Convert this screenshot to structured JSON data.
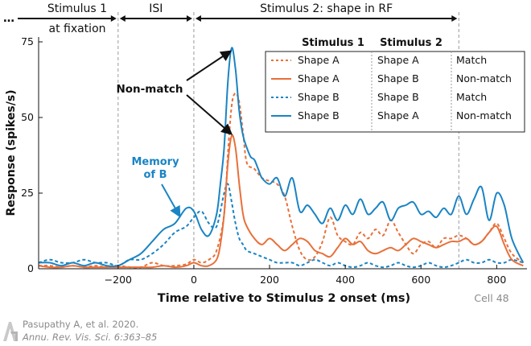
{
  "chart_data": {
    "type": "line",
    "title": "",
    "xlabel": "Time relative to Stimulus 2 onset (ms)",
    "ylabel": "Response (spikes/s)",
    "xlim": [
      -410,
      880
    ],
    "ylim": [
      0,
      75
    ],
    "x_ticks": [
      -200,
      0,
      200,
      400,
      600,
      800
    ],
    "x_tick_labels": [
      "−200",
      "0",
      "200",
      "400",
      "600",
      "800"
    ],
    "y_ticks": [
      0,
      25,
      50,
      75
    ],
    "y_tick_labels": [
      "0",
      "25",
      "50",
      "75"
    ],
    "cell_label": "Cell 48",
    "epochs": [
      {
        "label": "Stimulus 1",
        "sublabel": "at fixation",
        "start": -410,
        "end": -200,
        "dots": "…"
      },
      {
        "label": "ISI",
        "start": -200,
        "end": 0
      },
      {
        "label": "Stimulus 2: shape in RF",
        "start": 0,
        "end": 700
      }
    ],
    "epoch_boundaries": [
      -200,
      0,
      700
    ],
    "legend": {
      "header_stim1": "Stimulus 1",
      "header_stim2": "Stimulus 2",
      "rows": [
        {
          "stim1": "Shape A",
          "stim2": "Shape A",
          "outcome": "Match"
        },
        {
          "stim1": "Shape A",
          "stim2": "Shape B",
          "outcome": "Non-match"
        },
        {
          "stim1": "Shape B",
          "stim2": "Shape B",
          "outcome": "Match"
        },
        {
          "stim1": "Shape B",
          "stim2": "Shape A",
          "outcome": "Non-match"
        }
      ]
    },
    "annotations": {
      "nonmatch": "Non-match",
      "memory_line1": "Memory",
      "memory_line2": "of B"
    },
    "series": [
      {
        "name": "Shape A → Shape A (Match)",
        "color": "#e8703a",
        "dash": true,
        "x": [
          -410,
          -380,
          -350,
          -320,
          -290,
          -260,
          -230,
          -200,
          -170,
          -140,
          -110,
          -80,
          -50,
          -20,
          0,
          20,
          40,
          60,
          80,
          90,
          100,
          110,
          120,
          130,
          140,
          160,
          180,
          200,
          220,
          240,
          260,
          280,
          300,
          320,
          340,
          360,
          380,
          400,
          420,
          440,
          460,
          480,
          500,
          520,
          540,
          560,
          580,
          600,
          620,
          640,
          660,
          680,
          700,
          720,
          740,
          760,
          780,
          800,
          820,
          840,
          870
        ],
        "y": [
          1,
          1,
          0.5,
          1,
          0.5,
          1,
          0.5,
          1,
          0.5,
          0.5,
          2,
          1,
          1,
          1.5,
          3,
          2,
          3,
          6,
          18,
          38,
          54,
          58,
          55,
          45,
          35,
          33,
          30,
          29,
          28,
          24,
          14,
          6,
          3,
          4,
          9,
          17,
          11,
          9,
          8,
          12,
          10,
          13,
          11,
          16,
          12,
          8,
          5,
          8,
          9,
          7,
          10,
          10,
          11,
          10,
          8,
          9,
          12,
          15,
          10,
          5,
          2
        ]
      },
      {
        "name": "Shape A → Shape B (Non-match)",
        "color": "#e8703a",
        "dash": false,
        "x": [
          -410,
          -380,
          -350,
          -320,
          -290,
          -260,
          -230,
          -200,
          -170,
          -140,
          -110,
          -80,
          -50,
          -20,
          0,
          20,
          40,
          60,
          70,
          80,
          90,
          100,
          110,
          120,
          130,
          140,
          160,
          180,
          200,
          220,
          240,
          260,
          280,
          300,
          320,
          340,
          360,
          380,
          400,
          420,
          440,
          460,
          480,
          500,
          520,
          540,
          560,
          580,
          600,
          620,
          640,
          660,
          680,
          700,
          720,
          740,
          760,
          780,
          800,
          820,
          840,
          870
        ],
        "y": [
          1,
          0.5,
          0.5,
          1,
          0.5,
          0.5,
          0.5,
          0.5,
          0.5,
          0.5,
          0.5,
          1,
          0.5,
          1,
          2,
          1,
          1,
          3,
          8,
          18,
          35,
          44,
          40,
          28,
          18,
          14,
          10,
          8,
          10,
          8,
          6,
          8,
          10,
          9,
          6,
          5,
          4,
          7,
          10,
          8,
          9,
          6,
          5,
          6,
          7,
          6,
          8,
          10,
          9,
          8,
          7,
          8,
          9,
          9,
          10,
          8,
          9,
          12,
          14,
          8,
          3,
          1
        ]
      },
      {
        "name": "Shape B → Shape B (Match)",
        "color": "#1a84c4",
        "dash": true,
        "x": [
          -410,
          -380,
          -350,
          -320,
          -290,
          -260,
          -230,
          -200,
          -170,
          -140,
          -110,
          -80,
          -50,
          -20,
          0,
          20,
          40,
          60,
          80,
          90,
          100,
          110,
          120,
          130,
          140,
          160,
          180,
          200,
          220,
          240,
          260,
          280,
          300,
          320,
          340,
          360,
          380,
          400,
          420,
          440,
          460,
          480,
          500,
          520,
          540,
          560,
          580,
          600,
          620,
          640,
          660,
          680,
          700,
          720,
          740,
          760,
          780,
          800,
          820,
          840,
          870
        ],
        "y": [
          2,
          3,
          2,
          2,
          3,
          2,
          2,
          1,
          3,
          3,
          5,
          8,
          12,
          14,
          17,
          19,
          15,
          14,
          25,
          28,
          22,
          15,
          10,
          8,
          6,
          5,
          4,
          3,
          2,
          2,
          2,
          1,
          2,
          3,
          2,
          1,
          2,
          1,
          0.5,
          1,
          2,
          1,
          0.5,
          1,
          2,
          1,
          0.5,
          1,
          2,
          1,
          0.5,
          1,
          2,
          3,
          2,
          2,
          3,
          2,
          2,
          3,
          2
        ]
      },
      {
        "name": "Shape B → Shape A (Non-match)",
        "color": "#1a84c4",
        "dash": false,
        "x": [
          -410,
          -380,
          -350,
          -320,
          -290,
          -260,
          -230,
          -200,
          -170,
          -140,
          -110,
          -80,
          -50,
          -20,
          0,
          20,
          40,
          60,
          70,
          80,
          90,
          100,
          110,
          120,
          130,
          140,
          150,
          160,
          170,
          180,
          200,
          220,
          240,
          260,
          280,
          300,
          320,
          340,
          360,
          380,
          400,
          420,
          440,
          460,
          480,
          500,
          520,
          540,
          560,
          580,
          600,
          620,
          640,
          660,
          680,
          700,
          720,
          740,
          760,
          780,
          800,
          820,
          840,
          870
        ],
        "y": [
          2,
          2,
          1,
          2,
          1,
          2,
          1,
          1,
          3,
          5,
          9,
          13,
          15,
          20,
          19,
          13,
          11,
          18,
          28,
          40,
          62,
          73,
          66,
          52,
          44,
          40,
          37,
          36,
          33,
          30,
          28,
          30,
          24,
          30,
          19,
          21,
          18,
          15,
          20,
          16,
          21,
          18,
          23,
          18,
          20,
          22,
          16,
          20,
          21,
          22,
          18,
          19,
          17,
          20,
          18,
          24,
          18,
          23,
          27,
          16,
          25,
          21,
          10,
          2
        ]
      }
    ]
  },
  "citation": {
    "line1": "Pasupathy A, et al. 2020.",
    "line2": "Annu. Rev. Vis. Sci. 6:363–85"
  }
}
